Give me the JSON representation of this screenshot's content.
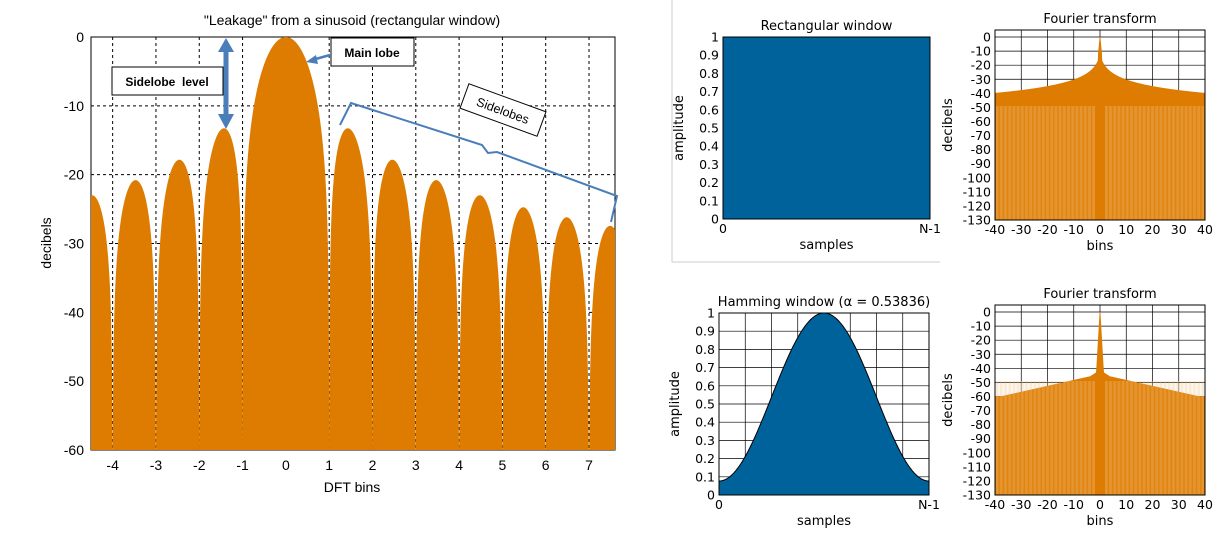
{
  "colors": {
    "orange": "#DD7C00",
    "blue": "#00629B",
    "annotation": "#4A7EBB",
    "grid": "#000000",
    "panel_border": "#BBBBBB"
  },
  "chart_data": [
    {
      "type": "area",
      "title": "\"Leakage\" from a sinusoid (rectangular window)",
      "xlabel": "DFT bins",
      "ylabel": "decibels",
      "xlim": [
        -4.5,
        7.6
      ],
      "ylim": [
        -60,
        0
      ],
      "xticks": [
        -4,
        -3,
        -2,
        -1,
        0,
        1,
        2,
        3,
        4,
        5,
        6,
        7
      ],
      "xticklabels": [
        "-4",
        "-3",
        "-2",
        "-1",
        "0",
        "1",
        "2",
        "3",
        "4",
        "5",
        "6",
        "7"
      ],
      "yticks": [
        0,
        -10,
        -20,
        -30,
        -40,
        -50,
        -60
      ],
      "yticklabels": [
        "0",
        "-10",
        "-20",
        "-30",
        "-40",
        "-50",
        "-60"
      ],
      "grid": true,
      "series": [
        {
          "function": "20*log10(|sin(pi*x)/(pi*x)|)",
          "x_range": [
            -4.5,
            7.6
          ],
          "floor": -60
        }
      ],
      "main_lobe_peak_db": 0,
      "first_sidelobe_db": -13.3,
      "annotations": [
        {
          "text": "Main lobe",
          "points_to": [
            0.5,
            -3
          ]
        },
        {
          "text": "Sidelobe level",
          "spans_db": [
            0,
            -13.3
          ]
        },
        {
          "text": "Sidelobes",
          "spans_bins": [
            1.2,
            7.6
          ]
        }
      ]
    },
    {
      "type": "area",
      "title": "Rectangular window",
      "xlabel": "samples",
      "ylabel": "amplitude",
      "xticklabels": [
        "0",
        "N-1"
      ],
      "ylim": [
        0,
        1
      ],
      "yticks": [
        0,
        0.1,
        0.2,
        0.3,
        0.4,
        0.5,
        0.6,
        0.7,
        0.8,
        0.9,
        1
      ],
      "yticklabels": [
        "0",
        "0.1",
        "0.2",
        "0.3",
        "0.4",
        "0.5",
        "0.6",
        "0.7",
        "0.8",
        "0.9",
        "1"
      ],
      "grid": true,
      "series": [
        {
          "function": "w(n) = 1",
          "x_range": [
            0,
            1
          ]
        }
      ]
    },
    {
      "type": "area",
      "title": "Fourier transform",
      "xlabel": "bins",
      "ylabel": "decibels",
      "xlim": [
        -40,
        40
      ],
      "ylim": [
        -130,
        5
      ],
      "xticks": [
        -40,
        -30,
        -20,
        -10,
        0,
        10,
        20,
        30,
        40
      ],
      "xticklabels": [
        "-40",
        "-30",
        "-20",
        "-10",
        "0",
        "10",
        "20",
        "30",
        "40"
      ],
      "yticks": [
        0,
        -10,
        -20,
        -30,
        -40,
        -50,
        -60,
        -70,
        -80,
        -90,
        -100,
        -110,
        -120,
        -130
      ],
      "yticklabels": [
        "0",
        "-10",
        "-20",
        "-30",
        "-40",
        "-50",
        "-60",
        "-70",
        "-80",
        "-90",
        "-100",
        "-110",
        "-120",
        "-130"
      ],
      "grid": true,
      "series": [
        {
          "envelope_db_at_edges": -42,
          "peak_db": 0
        }
      ]
    },
    {
      "type": "area",
      "title": "Hamming window (α = 0.53836)",
      "xlabel": "samples",
      "ylabel": "amplitude",
      "xticklabels": [
        "0",
        "N-1"
      ],
      "ylim": [
        0,
        1
      ],
      "yticks": [
        0,
        0.1,
        0.2,
        0.3,
        0.4,
        0.5,
        0.6,
        0.7,
        0.8,
        0.9,
        1
      ],
      "yticklabels": [
        "0",
        "0.1",
        "0.2",
        "0.3",
        "0.4",
        "0.5",
        "0.6",
        "0.7",
        "0.8",
        "0.9",
        "1"
      ],
      "grid": true,
      "series": [
        {
          "function": "w(n) = 0.53836 - 0.46164*cos(2*pi*n/(N-1))",
          "x_range": [
            0,
            1
          ]
        }
      ]
    },
    {
      "type": "area",
      "title": "Fourier transform",
      "xlabel": "bins",
      "ylabel": "decibels",
      "xlim": [
        -40,
        40
      ],
      "ylim": [
        -130,
        5
      ],
      "xticks": [
        -40,
        -30,
        -20,
        -10,
        0,
        10,
        20,
        30,
        40
      ],
      "xticklabels": [
        "-40",
        "-30",
        "-20",
        "-10",
        "0",
        "10",
        "20",
        "30",
        "40"
      ],
      "yticks": [
        0,
        -10,
        -20,
        -30,
        -40,
        -50,
        -60,
        -70,
        -80,
        -90,
        -100,
        -110,
        -120,
        -130
      ],
      "yticklabels": [
        "0",
        "-10",
        "-20",
        "-30",
        "-40",
        "-50",
        "-60",
        "-70",
        "-80",
        "-90",
        "-100",
        "-110",
        "-120",
        "-130"
      ],
      "grid": true,
      "series": [
        {
          "envelope_db_at_edges": -60,
          "near_main_lobe_db": -43,
          "peak_db": 0
        }
      ]
    }
  ],
  "annotations_text": {
    "main_lobe": "Main lobe",
    "sidelobe_level": "Sidelobe  level",
    "sidelobes": "Sidelobes"
  }
}
